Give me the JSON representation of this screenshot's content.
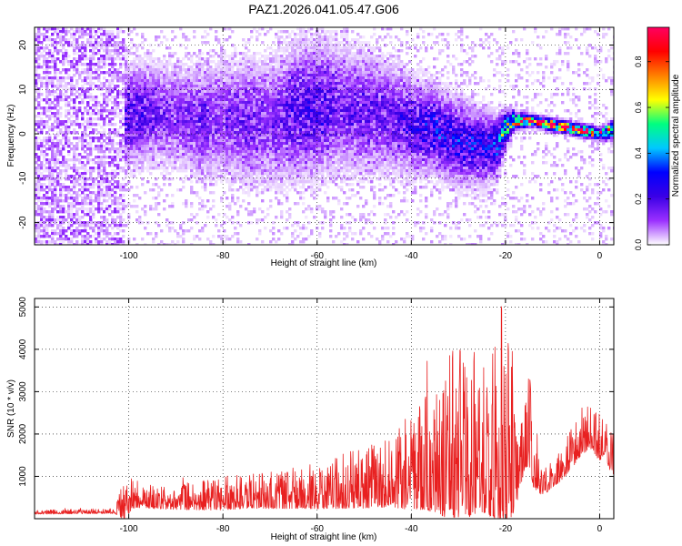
{
  "title": "PAZ1.2026.041.05.47.G06",
  "chart_data": [
    {
      "type": "heatmap",
      "title": "PAZ1.2026.041.05.47.G06",
      "xlabel": "Height of straight line (km)",
      "ylabel": "Frequency (Hz)",
      "xlim": [
        -120,
        3
      ],
      "ylim": [
        -25,
        24
      ],
      "x_ticks": [
        -100,
        -80,
        -60,
        -40,
        -20,
        0
      ],
      "y_ticks": [
        -20,
        -10,
        0,
        10,
        20
      ],
      "colorbar": {
        "label": "Normalized spectral amplitude",
        "range": [
          0,
          0.95
        ],
        "ticks": [
          0.0,
          0.2,
          0.4,
          0.6,
          0.8
        ],
        "tick_labels": [
          "0.0",
          "0.2",
          "0.4",
          "0.6",
          "0.8"
        ],
        "colormap": [
          "#ffffff",
          "#9b30ff",
          "#3a00e6",
          "#0000ff",
          "#00c8ff",
          "#00ff80",
          "#ffff00",
          "#ff8000",
          "#ff0000",
          "#ff0060"
        ]
      },
      "ridge": {
        "x": [
          -100,
          -95,
          -90,
          -85,
          -80,
          -75,
          -70,
          -65,
          -60,
          -55,
          -50,
          -45,
          -40,
          -35,
          -30,
          -25,
          -22,
          -20,
          -18,
          -15,
          -10,
          -5,
          0,
          3
        ],
        "freq": [
          4,
          5,
          4,
          3,
          3,
          3,
          2,
          5,
          6,
          6,
          5,
          4,
          2,
          1,
          -2,
          -3,
          -3,
          1,
          3,
          3,
          2,
          1,
          0,
          1
        ],
        "amplitude": [
          0.2,
          0.15,
          0.12,
          0.15,
          0.12,
          0.15,
          0.12,
          0.18,
          0.2,
          0.15,
          0.15,
          0.15,
          0.2,
          0.25,
          0.25,
          0.25,
          0.3,
          0.55,
          0.8,
          0.85,
          0.9,
          0.9,
          0.8,
          0.6
        ]
      },
      "ridge_width": [
        8,
        8,
        8,
        9,
        9,
        10,
        10,
        11,
        11,
        10,
        10,
        9,
        8,
        7,
        7,
        6,
        5,
        3,
        1.5,
        1,
        1,
        1,
        1,
        1.5
      ],
      "noise_region": {
        "x_range": [
          -120,
          -100
        ],
        "freq_range": [
          -25,
          24
        ],
        "amplitude": 0.08
      }
    },
    {
      "type": "line",
      "xlabel": "Height of straight line (km)",
      "ylabel": "SNR (10 * v/v)",
      "xlim": [
        -120,
        3
      ],
      "ylim": [
        0,
        5200
      ],
      "x_ticks": [
        -100,
        -80,
        -60,
        -40,
        -20,
        0
      ],
      "y_ticks": [
        1000,
        2000,
        3000,
        4000,
        5000
      ],
      "series": [
        {
          "name": "SNR",
          "color": "#e82020",
          "envelope": {
            "x": [
              -120,
              -110,
              -103,
              -101,
              -99,
              -97,
              -95,
              -90,
              -85,
              -80,
              -75,
              -70,
              -65,
              -60,
              -55,
              -50,
              -45,
              -42,
              -40,
              -37,
              -35,
              -33,
              -31,
              -29,
              -27,
              -25,
              -23,
              -21,
              -20,
              -19,
              -18,
              -17,
              -16,
              -15,
              -14,
              -13,
              -12,
              -10,
              -8,
              -6,
              -4,
              -2,
              0,
              1,
              2,
              3
            ],
            "base": [
              130,
              140,
              150,
              170,
              420,
              380,
              360,
              340,
              360,
              380,
              420,
              430,
              450,
              480,
              520,
              560,
              620,
              680,
              720,
              800,
              850,
              850,
              900,
              900,
              950,
              1000,
              1000,
              1100,
              1150,
              1150,
              900,
              1200,
              1700,
              1800,
              1000,
              800,
              700,
              900,
              1100,
              1400,
              1700,
              1900,
              1600,
              1700,
              1400,
              1200
            ],
            "amp": [
              60,
              70,
              80,
              600,
              500,
              350,
              350,
              350,
              450,
              500,
              500,
              550,
              600,
              700,
              800,
              900,
              1000,
              1300,
              1400,
              1700,
              2000,
              2300,
              2500,
              2600,
              2500,
              2400,
              2800,
              3300,
              3900,
              3300,
              2000,
              1600,
              1600,
              1500,
              800,
              500,
              450,
              450,
              550,
              650,
              600,
              650,
              700,
              500,
              600,
              600
            ]
          }
        }
      ]
    }
  ]
}
